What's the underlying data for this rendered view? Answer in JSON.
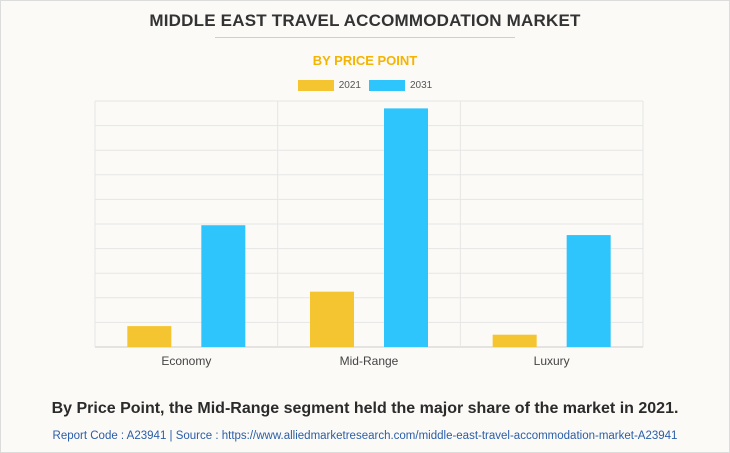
{
  "chart_data": {
    "type": "bar",
    "title": "MIDDLE EAST TRAVEL ACCOMMODATION MARKET",
    "subtitle": "BY PRICE POINT",
    "categories": [
      "Economy",
      "Mid-Range",
      "Luxury"
    ],
    "series": [
      {
        "name": "2021",
        "color": "#f5c531",
        "values": [
          8.5,
          22.5,
          5
        ]
      },
      {
        "name": "2031",
        "color": "#2ec5fd",
        "values": [
          49.5,
          97,
          45.5
        ]
      }
    ],
    "ylim": [
      0,
      100
    ],
    "y_gridlines": 10,
    "legend_position": "top-center",
    "grid": true
  },
  "footer": {
    "note": "By Price Point, the Mid-Range segment held the major share of the market in 2021.",
    "source": "Report Code : A23941  |  Source : https://www.alliedmarketresearch.com/middle-east-travel-accommodation-market-A23941"
  }
}
